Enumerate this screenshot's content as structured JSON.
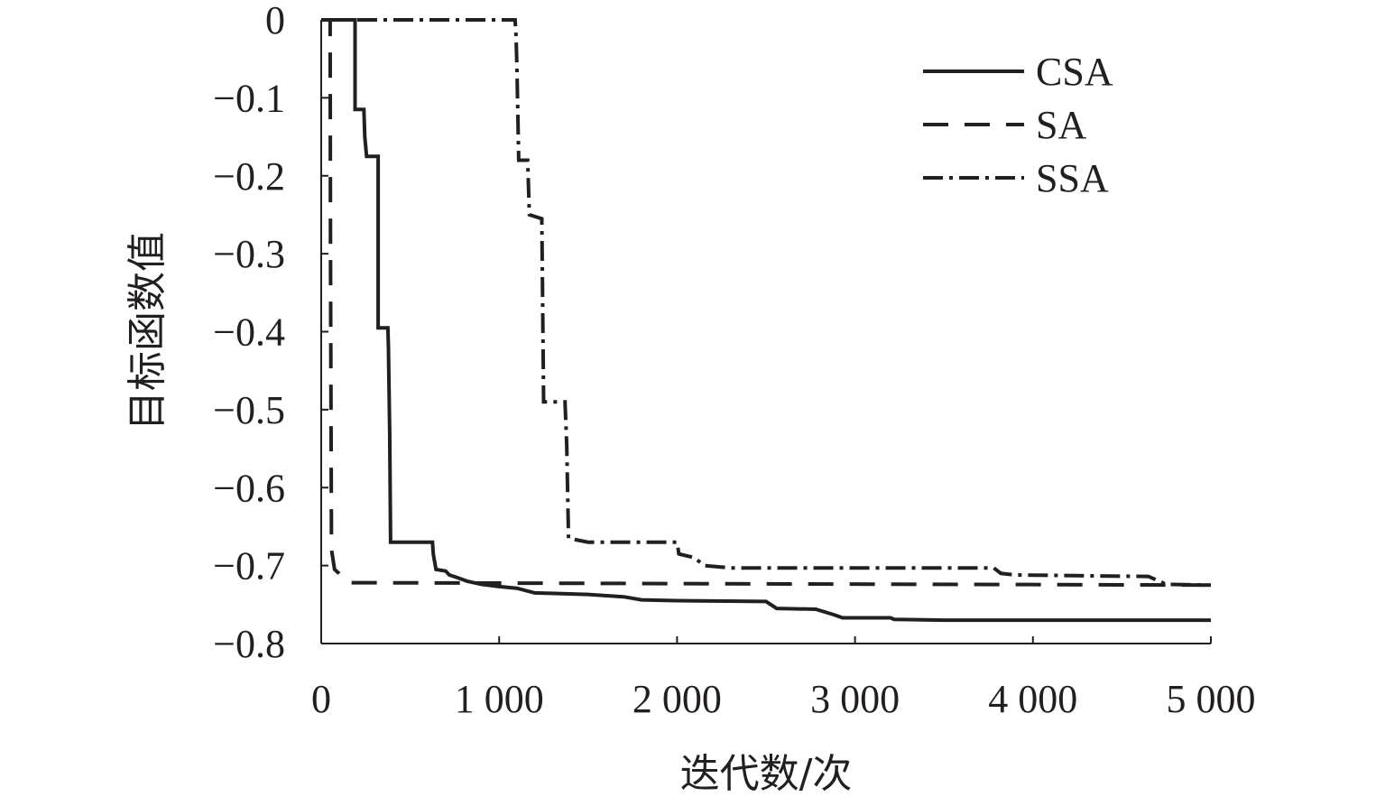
{
  "chart_data": {
    "type": "line",
    "title": "",
    "xlabel": "迭代数/次",
    "ylabel": "目标函数值",
    "xlim": [
      0,
      5000
    ],
    "ylim": [
      -0.8,
      0
    ],
    "x_ticks": [
      0,
      1000,
      2000,
      3000,
      4000,
      5000
    ],
    "x_tick_labels": [
      "0",
      "1 000",
      "2 000",
      "3 000",
      "4 000",
      "5 000"
    ],
    "y_ticks": [
      0,
      -0.1,
      -0.2,
      -0.3,
      -0.4,
      -0.5,
      -0.6,
      -0.7,
      -0.8
    ],
    "y_tick_labels": [
      "0",
      "−0.1",
      "−0.2",
      "−0.3",
      "−0.4",
      "−0.5",
      "−0.6",
      "−0.7",
      "−0.8"
    ],
    "grid": false,
    "legend_position": "top-right",
    "series": [
      {
        "name": "CSA",
        "dash": "solid",
        "points": [
          [
            0,
            0
          ],
          [
            190,
            0
          ],
          [
            190,
            -0.115
          ],
          [
            240,
            -0.115
          ],
          [
            245,
            -0.15
          ],
          [
            255,
            -0.175
          ],
          [
            320,
            -0.175
          ],
          [
            320,
            -0.395
          ],
          [
            375,
            -0.395
          ],
          [
            378,
            -0.42
          ],
          [
            385,
            -0.53
          ],
          [
            390,
            -0.67
          ],
          [
            625,
            -0.67
          ],
          [
            630,
            -0.685
          ],
          [
            645,
            -0.705
          ],
          [
            700,
            -0.707
          ],
          [
            720,
            -0.712
          ],
          [
            760,
            -0.715
          ],
          [
            820,
            -0.72
          ],
          [
            900,
            -0.724
          ],
          [
            1000,
            -0.727
          ],
          [
            1100,
            -0.729
          ],
          [
            1200,
            -0.735
          ],
          [
            1500,
            -0.737
          ],
          [
            1700,
            -0.74
          ],
          [
            1800,
            -0.744
          ],
          [
            2000,
            -0.745
          ],
          [
            2500,
            -0.746
          ],
          [
            2560,
            -0.755
          ],
          [
            2780,
            -0.756
          ],
          [
            2880,
            -0.763
          ],
          [
            2930,
            -0.767
          ],
          [
            3200,
            -0.767
          ],
          [
            3220,
            -0.769
          ],
          [
            3500,
            -0.77
          ],
          [
            5000,
            -0.77
          ]
        ]
      },
      {
        "name": "SA",
        "dash": "dashed",
        "points": [
          [
            0,
            0
          ],
          [
            50,
            0
          ],
          [
            52,
            -0.3
          ],
          [
            56,
            -0.55
          ],
          [
            58,
            -0.68
          ],
          [
            65,
            -0.69
          ],
          [
            75,
            -0.705
          ],
          [
            100,
            -0.71
          ],
          [
            150,
            -0.722
          ],
          [
            5000,
            -0.725
          ]
        ]
      },
      {
        "name": "SSA",
        "dash": "dashdot",
        "points": [
          [
            0,
            0
          ],
          [
            1090,
            0
          ],
          [
            1095,
            -0.02
          ],
          [
            1100,
            -0.06
          ],
          [
            1110,
            -0.18
          ],
          [
            1160,
            -0.18
          ],
          [
            1170,
            -0.25
          ],
          [
            1240,
            -0.255
          ],
          [
            1250,
            -0.49
          ],
          [
            1370,
            -0.49
          ],
          [
            1380,
            -0.545
          ],
          [
            1390,
            -0.665
          ],
          [
            1500,
            -0.67
          ],
          [
            2000,
            -0.67
          ],
          [
            2010,
            -0.685
          ],
          [
            2100,
            -0.69
          ],
          [
            2150,
            -0.7
          ],
          [
            2300,
            -0.703
          ],
          [
            3780,
            -0.703
          ],
          [
            3820,
            -0.71
          ],
          [
            3900,
            -0.712
          ],
          [
            4650,
            -0.714
          ],
          [
            4750,
            -0.724
          ],
          [
            5000,
            -0.725
          ]
        ]
      }
    ]
  }
}
